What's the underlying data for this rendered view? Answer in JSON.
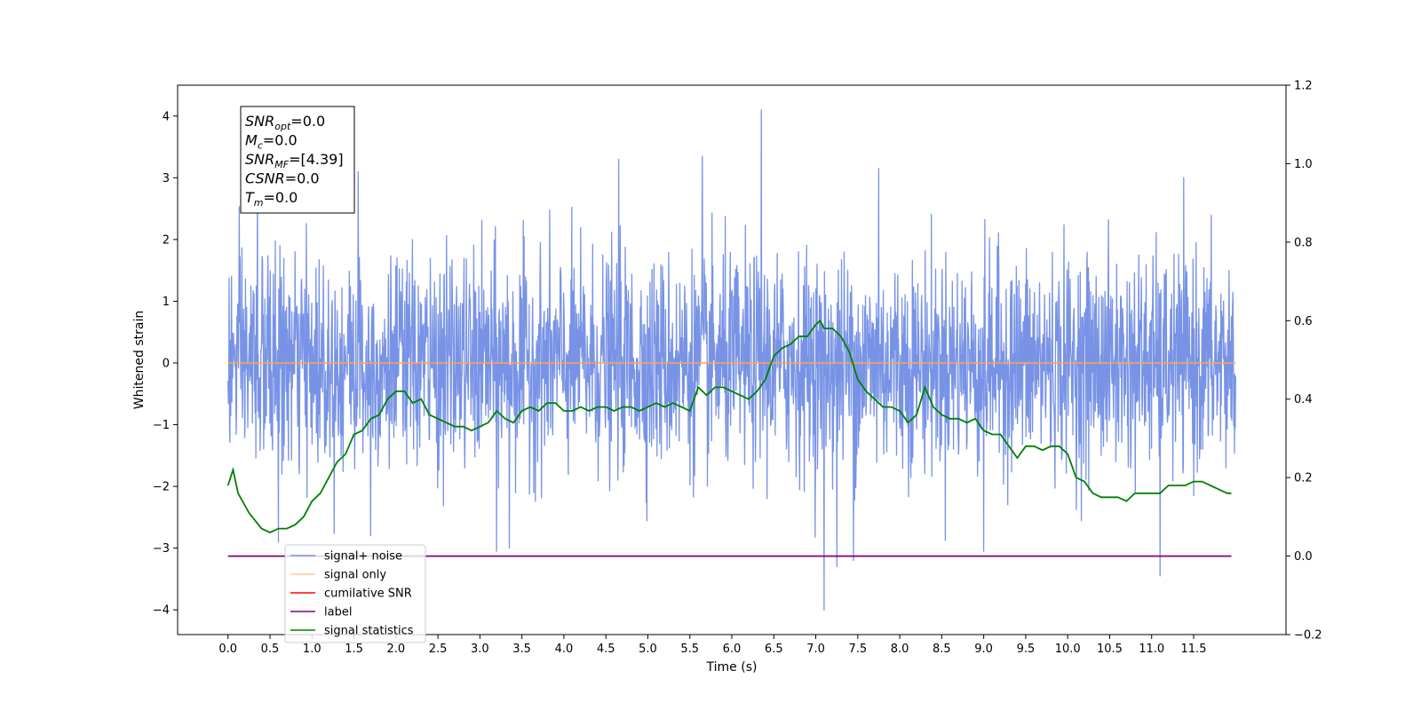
{
  "chart_data": {
    "type": "line",
    "xlabel": "Time (s)",
    "ylabel": "Whitened strain",
    "xlim": [
      -0.6,
      12.6
    ],
    "ylim": [
      -4.4,
      4.5
    ],
    "y2lim": [
      -0.2,
      1.2
    ],
    "x_ticks": [
      "0.0",
      "0.5",
      "1.0",
      "1.5",
      "2.0",
      "2.5",
      "3.0",
      "3.5",
      "4.0",
      "4.5",
      "5.0",
      "5.5",
      "6.0",
      "6.5",
      "7.0",
      "7.5",
      "8.0",
      "8.5",
      "9.0",
      "9.5",
      "10.0",
      "10.5",
      "11.0",
      "11.5"
    ],
    "y_ticks": [
      "4",
      "3",
      "2",
      "1",
      "0",
      "−1",
      "−2",
      "−3",
      "−4"
    ],
    "y2_ticks": [
      "1.2",
      "1.0",
      "0.8",
      "0.6",
      "0.4",
      "0.2",
      "0.0",
      "−0.2"
    ],
    "grid": false,
    "legend_position": "lower-left",
    "info_box": {
      "position": "top-left",
      "lines": [
        {
          "base": "SNR",
          "sub": "opt",
          "value": "=0.0"
        },
        {
          "base": "M",
          "sub": "c",
          "value": "=0.0"
        },
        {
          "base": "SNR",
          "sub": "MF",
          "value": "=[4.39]"
        },
        {
          "base": "CSNR",
          "sub": "",
          "value": "=0.0"
        },
        {
          "base": "T",
          "sub": "m",
          "value": "=0.0"
        }
      ]
    },
    "series": [
      {
        "name": "signal+ noise",
        "color": "#7893e6",
        "axis": "left",
        "style": "noise",
        "x_range": [
          0.0,
          12.0
        ],
        "amplitude_sd": 0.85,
        "notable_spikes": [
          [
            0.35,
            3.1
          ],
          [
            0.6,
            -2.9
          ],
          [
            1.55,
            3.1
          ],
          [
            1.7,
            -2.8
          ],
          [
            4.65,
            3.3
          ],
          [
            5.65,
            3.35
          ],
          [
            6.35,
            4.1
          ],
          [
            7.1,
            -4.0
          ],
          [
            7.25,
            -3.3
          ],
          [
            7.45,
            -3.2
          ],
          [
            7.75,
            3.15
          ],
          [
            9.0,
            -3.05
          ],
          [
            11.1,
            -3.45
          ],
          [
            3.2,
            -3.05
          ],
          [
            3.35,
            -3.0
          ]
        ]
      },
      {
        "name": "signal only",
        "color": "#ffa54f",
        "axis": "left",
        "x": [
          0.0,
          12.0
        ],
        "y": [
          0.0,
          0.0
        ]
      },
      {
        "name": "cumilative SNR",
        "color": "#ff0000",
        "axis": "right",
        "x": [],
        "y": []
      },
      {
        "name": "label",
        "color": "#800080",
        "axis": "right",
        "x": [
          0.0,
          11.95
        ],
        "y": [
          0.0,
          0.0
        ]
      },
      {
        "name": "signal statistics",
        "color": "#008000",
        "axis": "right",
        "x": [
          0.0,
          0.06,
          0.12,
          0.25,
          0.4,
          0.5,
          0.6,
          0.7,
          0.8,
          0.9,
          1.0,
          1.1,
          1.2,
          1.3,
          1.4,
          1.5,
          1.6,
          1.7,
          1.8,
          1.9,
          2.0,
          2.1,
          2.2,
          2.3,
          2.4,
          2.5,
          2.6,
          2.7,
          2.8,
          2.9,
          3.0,
          3.1,
          3.2,
          3.3,
          3.4,
          3.5,
          3.6,
          3.7,
          3.8,
          3.9,
          4.0,
          4.1,
          4.2,
          4.3,
          4.4,
          4.5,
          4.6,
          4.7,
          4.8,
          4.9,
          5.0,
          5.1,
          5.2,
          5.3,
          5.4,
          5.5,
          5.6,
          5.7,
          5.8,
          5.9,
          6.0,
          6.1,
          6.2,
          6.3,
          6.4,
          6.5,
          6.6,
          6.7,
          6.8,
          6.9,
          7.0,
          7.05,
          7.1,
          7.2,
          7.3,
          7.4,
          7.5,
          7.6,
          7.7,
          7.8,
          7.9,
          8.0,
          8.1,
          8.2,
          8.3,
          8.4,
          8.5,
          8.6,
          8.7,
          8.8,
          8.9,
          9.0,
          9.1,
          9.2,
          9.3,
          9.4,
          9.5,
          9.6,
          9.7,
          9.8,
          9.9,
          10.0,
          10.1,
          10.2,
          10.3,
          10.4,
          10.5,
          10.6,
          10.7,
          10.8,
          10.9,
          11.0,
          11.1,
          11.2,
          11.3,
          11.4,
          11.5,
          11.6,
          11.7,
          11.8,
          11.9,
          11.95
        ],
        "y": [
          0.18,
          0.22,
          0.16,
          0.11,
          0.07,
          0.06,
          0.07,
          0.07,
          0.08,
          0.1,
          0.14,
          0.16,
          0.2,
          0.24,
          0.26,
          0.31,
          0.32,
          0.35,
          0.36,
          0.4,
          0.42,
          0.42,
          0.39,
          0.4,
          0.36,
          0.35,
          0.34,
          0.33,
          0.33,
          0.32,
          0.33,
          0.34,
          0.37,
          0.35,
          0.34,
          0.37,
          0.38,
          0.37,
          0.39,
          0.39,
          0.37,
          0.37,
          0.38,
          0.37,
          0.38,
          0.38,
          0.37,
          0.38,
          0.38,
          0.37,
          0.38,
          0.39,
          0.38,
          0.39,
          0.38,
          0.37,
          0.43,
          0.41,
          0.43,
          0.43,
          0.42,
          0.41,
          0.4,
          0.42,
          0.45,
          0.51,
          0.53,
          0.54,
          0.56,
          0.56,
          0.59,
          0.6,
          0.58,
          0.58,
          0.56,
          0.52,
          0.45,
          0.42,
          0.4,
          0.38,
          0.38,
          0.37,
          0.34,
          0.36,
          0.43,
          0.38,
          0.36,
          0.35,
          0.35,
          0.34,
          0.35,
          0.32,
          0.31,
          0.31,
          0.28,
          0.25,
          0.28,
          0.28,
          0.27,
          0.28,
          0.28,
          0.26,
          0.2,
          0.19,
          0.16,
          0.15,
          0.15,
          0.15,
          0.14,
          0.16,
          0.16,
          0.16,
          0.16,
          0.18,
          0.18,
          0.18,
          0.19,
          0.19,
          0.18,
          0.17,
          0.16,
          0.16
        ]
      }
    ]
  }
}
